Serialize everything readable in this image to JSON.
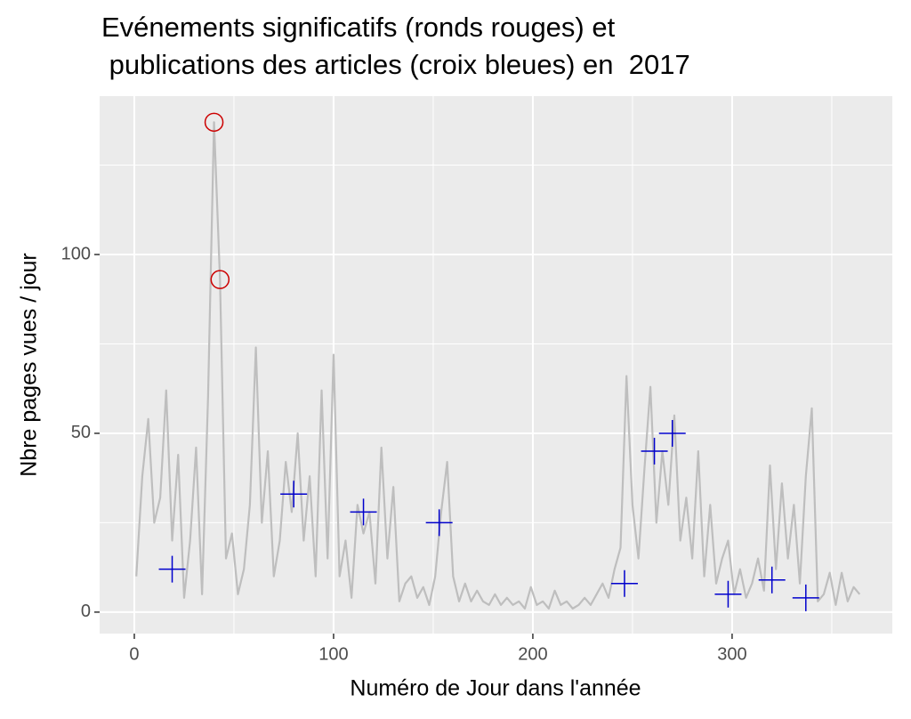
{
  "chart_data": {
    "type": "line",
    "title": [
      "Evénements significatifs (ronds rouges) et",
      " publications des articles (croix bleues) en  2017"
    ],
    "xlabel": "Numéro de Jour dans l'année",
    "ylabel": "Nbre pages vues / jour",
    "xlim": [
      -17.4,
      380.4
    ],
    "ylim": [
      -6,
      144.3
    ],
    "xticks": [
      0,
      100,
      200,
      300
    ],
    "yticks": [
      0,
      50,
      100
    ],
    "xminor": [
      50,
      150,
      250,
      350
    ],
    "yminor": [
      25,
      75,
      125
    ],
    "grid": true,
    "series": [
      {
        "color": "#bebebe",
        "x": [
          1,
          4,
          7,
          10,
          13,
          16,
          19,
          22,
          25,
          28,
          31,
          34,
          37,
          40,
          43,
          46,
          49,
          52,
          55,
          58,
          61,
          64,
          67,
          70,
          73,
          76,
          79,
          82,
          85,
          88,
          91,
          94,
          97,
          100,
          103,
          106,
          109,
          112,
          115,
          118,
          121,
          124,
          127,
          130,
          133,
          136,
          139,
          142,
          145,
          148,
          151,
          154,
          157,
          160,
          163,
          166,
          169,
          172,
          175,
          178,
          181,
          184,
          187,
          190,
          193,
          196,
          199,
          202,
          205,
          208,
          211,
          214,
          217,
          220,
          223,
          226,
          229,
          232,
          235,
          238,
          241,
          244,
          247,
          250,
          253,
          256,
          259,
          262,
          265,
          268,
          271,
          274,
          277,
          280,
          283,
          286,
          289,
          292,
          295,
          298,
          301,
          304,
          307,
          310,
          313,
          316,
          319,
          322,
          325,
          328,
          331,
          334,
          337,
          340,
          343,
          346,
          349,
          352,
          355,
          358,
          361,
          364
        ],
        "values": [
          10,
          38,
          54,
          25,
          32,
          62,
          20,
          44,
          4,
          20,
          46,
          5,
          60,
          137,
          93,
          15,
          22,
          5,
          12,
          30,
          74,
          25,
          45,
          10,
          20,
          42,
          28,
          50,
          20,
          38,
          10,
          62,
          15,
          72,
          10,
          20,
          4,
          30,
          22,
          28,
          8,
          46,
          15,
          35,
          3,
          8,
          10,
          4,
          7,
          2,
          10,
          28,
          42,
          10,
          3,
          8,
          3,
          6,
          3,
          2,
          5,
          2,
          4,
          2,
          3,
          1,
          7,
          2,
          3,
          1,
          6,
          2,
          3,
          1,
          2,
          4,
          2,
          5,
          8,
          4,
          12,
          18,
          66,
          30,
          15,
          40,
          63,
          25,
          45,
          30,
          55,
          20,
          32,
          15,
          45,
          10,
          30,
          8,
          15,
          20,
          5,
          12,
          4,
          8,
          15,
          6,
          41,
          12,
          36,
          15,
          30,
          8,
          38,
          57,
          3,
          5,
          11,
          2,
          11,
          3,
          7,
          5
        ]
      },
      {
        "color": "#cc0000",
        "x": [
          40,
          43
        ],
        "values": [
          137,
          93
        ]
      },
      {
        "color": "#0000cc",
        "x": [
          19,
          80,
          115,
          153,
          246,
          261,
          270,
          298,
          320,
          337
        ],
        "values": [
          12,
          33,
          28,
          25,
          8,
          45,
          50,
          5,
          9,
          4
        ]
      }
    ]
  }
}
